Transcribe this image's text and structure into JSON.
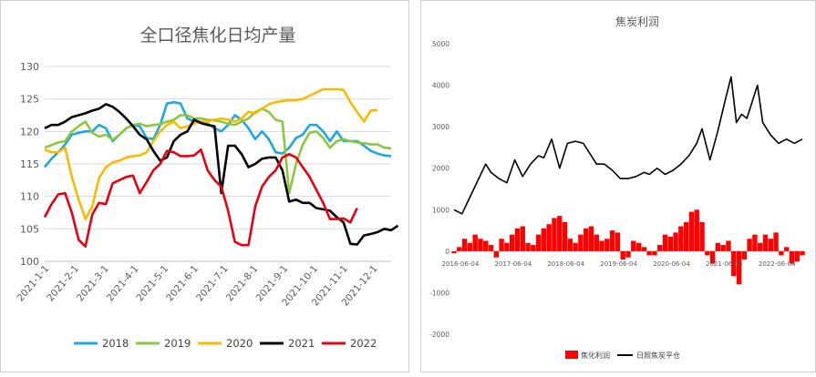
{
  "chart_data": [
    {
      "type": "line",
      "title": "全口径焦化日均产量",
      "xlabel": "",
      "ylabel": "",
      "ylim": [
        100,
        130
      ],
      "yticks": [
        100,
        105,
        110,
        115,
        120,
        125,
        130
      ],
      "grid": true,
      "legend": "bottom",
      "x_tick_labels": [
        "2021-1-1",
        "2021-2-1",
        "2021-3-1",
        "2021-4-1",
        "2021-5-1",
        "2021-6-1",
        "2021-7-1",
        "2021-8-1",
        "2021-9-1",
        "2021-10-1",
        "2021-11-1",
        "2021-12-1"
      ],
      "series": [
        {
          "name": "2018",
          "color": "#1ea7e1",
          "values": [
            114.5,
            115.8,
            116.8,
            118,
            119.5,
            119.8,
            120,
            120,
            121,
            120.5,
            118.5,
            119.5,
            120.5,
            121,
            120.8,
            119,
            118.8,
            121,
            124.3,
            124.5,
            124.3,
            122,
            121.5,
            121.5,
            121.2,
            120.5,
            120,
            121,
            122.5,
            121.8,
            120.5,
            118.8,
            120,
            118.8,
            116.8,
            116.6,
            117.5,
            119,
            119.5,
            121,
            121,
            120,
            118.5,
            120,
            118.5,
            118.5,
            118.5,
            117.8,
            117,
            116.6,
            116.3,
            116.2
          ]
        },
        {
          "name": "2019",
          "color": "#8dc63f",
          "values": [
            117.5,
            117.9,
            118.3,
            118.5,
            120,
            120.8,
            121.5,
            119.8,
            119.2,
            119.5,
            118.7,
            119.5,
            120.5,
            121,
            121.2,
            120.8,
            121,
            121.1,
            121.5,
            121.8,
            122.5,
            122.5,
            122,
            122,
            121.8,
            121.7,
            121.5,
            121.2,
            121,
            121.5,
            122,
            123,
            123.5,
            123,
            121.8,
            121.5,
            110.5,
            115,
            118,
            119.8,
            120,
            119,
            117.5,
            118.5,
            118.8,
            118.5,
            118.3,
            118.2,
            118,
            118,
            117.5,
            117.4
          ]
        },
        {
          "name": "2020",
          "color": "#fbb900",
          "values": [
            117.2,
            116.8,
            116.8,
            117.5,
            113,
            109.5,
            106.5,
            108.5,
            112.8,
            114.5,
            115.2,
            115.5,
            116,
            116.2,
            116.3,
            116.8,
            118.5,
            120,
            121,
            121.5,
            120.5,
            120.8,
            121.2,
            121.5,
            121.5,
            121.8,
            122,
            121.8,
            121.5,
            122,
            123,
            122.8,
            123.5,
            124.2,
            124.5,
            124.7,
            124.8,
            124.8,
            125,
            125.5,
            126,
            126.5,
            126.5,
            126.5,
            126.4,
            124.5,
            123,
            121.5,
            123.2,
            123.3
          ]
        },
        {
          "name": "2021",
          "color": "#000000",
          "values": [
            120.5,
            121,
            121,
            121.5,
            122.2,
            122.5,
            122.8,
            123.2,
            123.5,
            124.2,
            123.8,
            123,
            122,
            120.8,
            119.5,
            118.8,
            117,
            115.5,
            116,
            118.5,
            119.5,
            120,
            121.8,
            121.3,
            121,
            120.8,
            110.5,
            117.8,
            117.8,
            116.5,
            114.5,
            115,
            115.8,
            116,
            116,
            114,
            109.2,
            109.5,
            109,
            109,
            108.2,
            108,
            107.8,
            106.8,
            106,
            102.7,
            102.6,
            104,
            104.2,
            104.5,
            105,
            104.8,
            105.5
          ]
        },
        {
          "name": "2022",
          "color": "#e60012",
          "values": [
            106.8,
            108.8,
            110.3,
            110.5,
            107.5,
            103.3,
            102.3,
            107.2,
            109,
            108.8,
            112,
            112.5,
            113,
            113.2,
            110.5,
            112.2,
            114,
            115,
            117,
            116.8,
            116.2,
            116.2,
            116.3,
            117.2,
            114,
            112.5,
            111.5,
            107.8,
            103,
            102.5,
            102.5,
            108.5,
            111.5,
            113,
            114,
            116,
            116.5,
            116,
            114.5,
            113,
            111,
            109,
            106.5,
            106.5,
            106.6,
            106,
            108.2
          ]
        }
      ]
    },
    {
      "type": "bar+line",
      "title": "焦炭利润",
      "xlabel": "",
      "ylabel": "",
      "ylim": [
        -2000,
        5000
      ],
      "yticks": [
        -2000,
        -1000,
        0,
        1000,
        2000,
        3000,
        4000,
        5000
      ],
      "grid": false,
      "legend": "bottom",
      "x_tick_labels": [
        "2016-06-04",
        "2017-06-04",
        "2018-06-04",
        "2019-06-04",
        "2020-06-04",
        "2021-06-04",
        "2022-06-04"
      ],
      "x_range": [
        2016.3,
        2022.9
      ],
      "bar_series": {
        "name": "焦化利润",
        "color": "#ff0000",
        "x": [
          2016.3,
          2016.4,
          2016.5,
          2016.6,
          2016.7,
          2016.8,
          2016.9,
          2017.0,
          2017.1,
          2017.2,
          2017.3,
          2017.4,
          2017.5,
          2017.6,
          2017.7,
          2017.8,
          2017.9,
          2018.0,
          2018.1,
          2018.2,
          2018.3,
          2018.4,
          2018.5,
          2018.6,
          2018.7,
          2018.8,
          2018.9,
          2019.0,
          2019.1,
          2019.2,
          2019.3,
          2019.4,
          2019.5,
          2019.6,
          2019.7,
          2019.8,
          2019.9,
          2020.0,
          2020.1,
          2020.2,
          2020.3,
          2020.4,
          2020.5,
          2020.6,
          2020.7,
          2020.8,
          2020.9,
          2021.0,
          2021.1,
          2021.2,
          2021.3,
          2021.4,
          2021.5,
          2021.6,
          2021.7,
          2021.8,
          2021.9,
          2022.0,
          2022.1,
          2022.2,
          2022.3,
          2022.4,
          2022.5,
          2022.6,
          2022.7,
          2022.8,
          2022.9
        ],
        "values": [
          -50,
          100,
          300,
          200,
          400,
          300,
          250,
          150,
          -150,
          300,
          200,
          400,
          550,
          600,
          200,
          150,
          400,
          550,
          650,
          800,
          850,
          700,
          300,
          200,
          400,
          550,
          600,
          400,
          250,
          300,
          500,
          450,
          -200,
          -150,
          250,
          200,
          100,
          -100,
          -100,
          150,
          400,
          350,
          450,
          600,
          700,
          950,
          1000,
          700,
          -100,
          -300,
          200,
          150,
          250,
          -600,
          -800,
          -200,
          300,
          400,
          200,
          400,
          300,
          450,
          -100,
          100,
          -300,
          -250,
          -100
        ]
      },
      "line_series": {
        "name": "日照焦炭平仓",
        "color": "#000000",
        "x": [
          2016.3,
          2016.45,
          2016.6,
          2016.75,
          2016.9,
          2017.0,
          2017.15,
          2017.3,
          2017.45,
          2017.6,
          2017.75,
          2017.9,
          2018.0,
          2018.15,
          2018.3,
          2018.45,
          2018.6,
          2018.75,
          2018.9,
          2019.0,
          2019.15,
          2019.3,
          2019.45,
          2019.6,
          2019.75,
          2019.9,
          2020.0,
          2020.15,
          2020.3,
          2020.45,
          2020.6,
          2020.75,
          2020.9,
          2021.0,
          2021.15,
          2021.3,
          2021.45,
          2021.55,
          2021.65,
          2021.75,
          2021.85,
          2021.95,
          2022.05,
          2022.15,
          2022.3,
          2022.45,
          2022.6,
          2022.75,
          2022.9
        ],
        "values": [
          1000,
          900,
          1300,
          1700,
          2100,
          1900,
          1750,
          1650,
          2200,
          1800,
          2100,
          2300,
          2250,
          2700,
          2000,
          2600,
          2650,
          2600,
          2300,
          2100,
          2100,
          1950,
          1750,
          1750,
          1800,
          1900,
          1850,
          2000,
          1850,
          1950,
          2100,
          2300,
          2600,
          2950,
          2200,
          2900,
          3700,
          4200,
          3100,
          3300,
          3200,
          3600,
          4000,
          3100,
          2800,
          2600,
          2700,
          2600,
          2700
        ]
      }
    }
  ]
}
